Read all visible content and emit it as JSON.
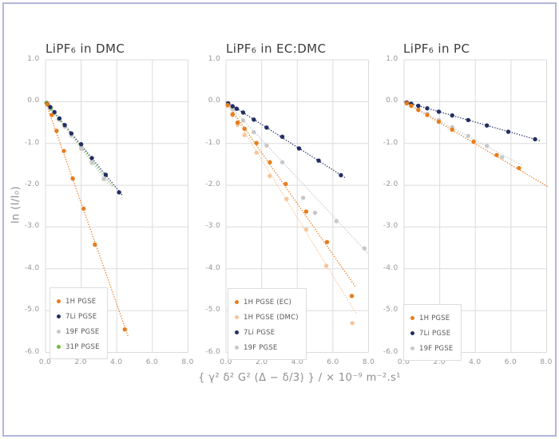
{
  "figure": {
    "x_axis_label": "{ γ² δ² G² (Δ − δ/3) } / × 10⁻⁹ m⁻².s¹",
    "y_axis_label": "ln (I/I₀)"
  },
  "colors": {
    "background": "#FFFFFF",
    "figure_border": "#B2B7D9",
    "grid": "#DBDBDB",
    "tick_text": "#969696",
    "title_text": "#3C3C3C",
    "legend_text": "#5A5A5A",
    "legend_border": "#DCDCDC",
    "orange": "#E87D1E",
    "light_orange": "#F6C59A",
    "navy": "#232E63",
    "gray": "#C8C8C8",
    "green": "#6CBE45"
  },
  "chart_data": [
    {
      "type": "scatter",
      "title": "LiPF₆ in DMC",
      "xlim": [
        0.0,
        8.0
      ],
      "ylim": [
        -6.0,
        1.0
      ],
      "xticks": [
        0.0,
        2.0,
        4.0,
        6.0,
        8.0
      ],
      "yticks": [
        1.0,
        0.0,
        -1.0,
        -2.0,
        -3.0,
        -4.0,
        -5.0,
        -6.0
      ],
      "grid": true,
      "legend_position": "lower-left",
      "series": [
        {
          "name": "1H PGSE",
          "color": "#E87D1E",
          "marker": "circle",
          "line_style": "dotted",
          "points": [
            [
              0.1,
              -0.06
            ],
            [
              0.35,
              -0.32
            ],
            [
              0.62,
              -0.7
            ],
            [
              1.03,
              -1.18
            ],
            [
              1.53,
              -1.84
            ],
            [
              2.14,
              -2.56
            ],
            [
              2.77,
              -3.42
            ],
            [
              4.45,
              -5.45
            ]
          ],
          "trend": [
            [
              0,
              0
            ],
            [
              4.62,
              -5.6
            ]
          ]
        },
        {
          "name": "7Li PGSE",
          "color": "#232E63",
          "marker": "circle",
          "line_style": "dotted",
          "points": [
            [
              0.1,
              -0.05
            ],
            [
              0.27,
              -0.13
            ],
            [
              0.5,
              -0.25
            ],
            [
              0.78,
              -0.4
            ],
            [
              1.08,
              -0.56
            ],
            [
              1.45,
              -0.76
            ],
            [
              2.0,
              -1.02
            ],
            [
              2.6,
              -1.35
            ],
            [
              3.38,
              -1.75
            ],
            [
              4.13,
              -2.17
            ]
          ],
          "trend": [
            [
              0,
              0
            ],
            [
              4.35,
              -2.26
            ]
          ]
        },
        {
          "name": "19F PGSE",
          "color": "#C8C8C8",
          "marker": "circle",
          "line_style": "dotted",
          "points": [
            [
              0.1,
              -0.06
            ],
            [
              0.27,
              -0.15
            ],
            [
              0.5,
              -0.28
            ],
            [
              0.78,
              -0.44
            ],
            [
              1.08,
              -0.6
            ],
            [
              1.45,
              -0.81
            ],
            [
              2.0,
              -1.12
            ],
            [
              2.6,
              -1.46
            ],
            [
              3.27,
              -1.85
            ]
          ],
          "trend": [
            [
              0,
              0
            ],
            [
              3.55,
              -1.99
            ]
          ]
        },
        {
          "name": "31P PGSE",
          "color": "#6CBE45",
          "marker": "circle",
          "line_style": "dotted",
          "points": [
            [
              0.05,
              -0.03
            ],
            [
              0.14,
              -0.08
            ],
            [
              0.3,
              -0.17
            ],
            [
              0.5,
              -0.28
            ],
            [
              0.75,
              -0.42
            ]
          ],
          "trend": [
            [
              0,
              0
            ],
            [
              3.8,
              -2.05
            ]
          ]
        }
      ]
    },
    {
      "type": "scatter",
      "title": "LiPF₆ in EC:DMC",
      "xlim": [
        0.0,
        8.0
      ],
      "ylim": [
        -6.0,
        1.0
      ],
      "xticks": [
        0.0,
        2.0,
        4.0,
        6.0,
        8.0
      ],
      "yticks": [
        1.0,
        0.0,
        -1.0,
        -2.0,
        -3.0,
        -4.0,
        -5.0,
        -6.0
      ],
      "grid": true,
      "legend_position": "lower-left",
      "series": [
        {
          "name": "1H PGSE (EC)",
          "color": "#E87D1E",
          "marker": "circle",
          "line_style": "dotted",
          "points": [
            [
              0.1,
              -0.08
            ],
            [
              0.37,
              -0.3
            ],
            [
              0.65,
              -0.5
            ],
            [
              1.04,
              -0.65
            ],
            [
              1.71,
              -0.99
            ],
            [
              2.46,
              -1.45
            ],
            [
              3.35,
              -1.97
            ],
            [
              4.5,
              -2.63
            ],
            [
              5.67,
              -3.36
            ],
            [
              7.06,
              -4.65
            ]
          ],
          "trend": [
            [
              0,
              0
            ],
            [
              7.3,
              -4.45
            ]
          ]
        },
        {
          "name": "1H PGSE (DMC)",
          "color": "#F6C59A",
          "marker": "circle",
          "line_style": "dotted",
          "points": [
            [
              0.1,
              -0.1
            ],
            [
              0.37,
              -0.33
            ],
            [
              0.65,
              -0.55
            ],
            [
              1.04,
              -0.8
            ],
            [
              1.71,
              -1.22
            ],
            [
              2.46,
              -1.78
            ],
            [
              3.4,
              -2.33
            ],
            [
              4.5,
              -3.06
            ],
            [
              5.63,
              -3.93
            ],
            [
              7.09,
              -5.3
            ]
          ],
          "trend": [
            [
              0,
              0
            ],
            [
              7.35,
              -5.1
            ]
          ]
        },
        {
          "name": "7Li PGSE",
          "color": "#232E63",
          "marker": "circle",
          "line_style": "dotted",
          "points": [
            [
              0.12,
              -0.04
            ],
            [
              0.37,
              -0.11
            ],
            [
              0.6,
              -0.17
            ],
            [
              0.96,
              -0.26
            ],
            [
              1.56,
              -0.43
            ],
            [
              2.28,
              -0.62
            ],
            [
              3.16,
              -0.84
            ],
            [
              4.1,
              -1.12
            ],
            [
              5.2,
              -1.41
            ],
            [
              6.45,
              -1.76
            ]
          ],
          "trend": [
            [
              0,
              0
            ],
            [
              6.65,
              -1.81
            ]
          ]
        },
        {
          "name": "19F PGSE",
          "color": "#C8C8C8",
          "marker": "circle",
          "line_style": "dotted",
          "points": [
            [
              0.12,
              -0.06
            ],
            [
              0.37,
              -0.18
            ],
            [
              0.96,
              -0.45
            ],
            [
              1.56,
              -0.73
            ],
            [
              2.28,
              -1.05
            ],
            [
              3.16,
              -1.45
            ],
            [
              4.33,
              -2.3
            ],
            [
              5.0,
              -2.66
            ],
            [
              6.2,
              -2.86
            ],
            [
              7.77,
              -3.51
            ]
          ],
          "trend": [
            [
              0,
              0
            ],
            [
              7.95,
              -3.62
            ]
          ]
        }
      ]
    },
    {
      "type": "scatter",
      "title": "LiPF₆ in PC",
      "xlim": [
        0.0,
        8.0
      ],
      "ylim": [
        -6.0,
        1.0
      ],
      "xticks": [
        0.0,
        2.0,
        4.0,
        6.0,
        8.0
      ],
      "yticks": [
        1.0,
        0.0,
        -1.0,
        -2.0,
        -3.0,
        -4.0,
        -5.0,
        -6.0
      ],
      "grid": true,
      "legend_position": "lower-left",
      "series": [
        {
          "name": "1H PGSE",
          "color": "#E87D1E",
          "marker": "circle",
          "line_style": "dotted",
          "points": [
            [
              0.15,
              -0.04
            ],
            [
              0.4,
              -0.1
            ],
            [
              0.8,
              -0.2
            ],
            [
              1.3,
              -0.32
            ],
            [
              1.95,
              -0.48
            ],
            [
              2.7,
              -0.67
            ],
            [
              3.9,
              -0.96
            ],
            [
              5.2,
              -1.28
            ],
            [
              6.45,
              -1.59
            ]
          ],
          "trend": [
            [
              0,
              0
            ],
            [
              8.05,
              -2.03
            ]
          ]
        },
        {
          "name": "7Li PGSE",
          "color": "#232E63",
          "marker": "circle",
          "line_style": "dotted",
          "points": [
            [
              0.15,
              -0.02
            ],
            [
              0.4,
              -0.05
            ],
            [
              0.8,
              -0.1
            ],
            [
              1.3,
              -0.16
            ],
            [
              1.95,
              -0.24
            ],
            [
              2.7,
              -0.33
            ],
            [
              3.6,
              -0.44
            ],
            [
              4.65,
              -0.57
            ],
            [
              5.85,
              -0.72
            ],
            [
              7.35,
              -0.9
            ]
          ],
          "trend": [
            [
              0,
              0
            ],
            [
              7.6,
              -0.93
            ]
          ]
        },
        {
          "name": "19F PGSE",
          "color": "#C8C8C8",
          "marker": "circle",
          "line_style": "dotted",
          "points": [
            [
              0.15,
              -0.04
            ],
            [
              0.4,
              -0.09
            ],
            [
              0.8,
              -0.18
            ],
            [
              1.3,
              -0.29
            ],
            [
              1.95,
              -0.44
            ],
            [
              2.7,
              -0.61
            ],
            [
              3.6,
              -0.82
            ],
            [
              4.65,
              -1.06
            ],
            [
              5.5,
              -1.33
            ]
          ],
          "trend": [
            [
              0,
              0
            ],
            [
              6.6,
              -1.52
            ]
          ]
        }
      ]
    }
  ]
}
